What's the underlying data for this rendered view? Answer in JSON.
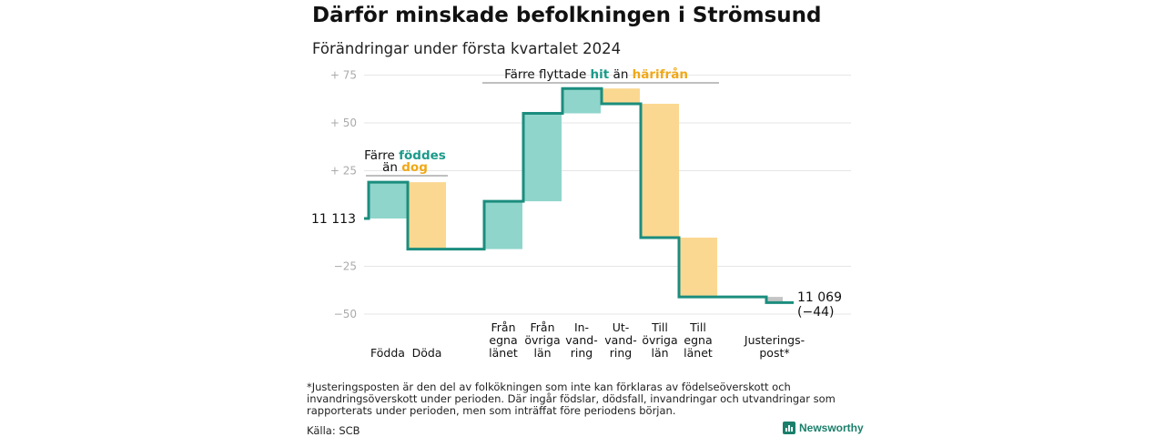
{
  "title": "Därför minskade befolkningen i Strömsund",
  "subtitle": "Förändringar under första kvartalet 2024",
  "footnote": "*Justeringsposten är den del av folkökningen som inte kan förklaras av födelseöverskott och invandringsöverskott under perioden. Där ingår födslar, dödsfall, invandringar och utvandringar som rapporterats under perioden, men som inträffat före periodens början.",
  "source": "Källa: SCB",
  "logo_text": "Newsworthy",
  "colors": {
    "increase": "#8fd5cb",
    "decrease": "#fbd891",
    "adjustment": "#c4c4c4",
    "line": "#1b8d7e",
    "teal_text": "#1b9a8a",
    "orange_text": "#f0a818"
  },
  "chart_data": {
    "type": "waterfall",
    "baseline_value": 11113,
    "start_label": "11  113",
    "end_label_lines": [
      "11 069",
      "(−44)"
    ],
    "ylim": [
      -53,
      80
    ],
    "yticks": [
      {
        "value": 75,
        "label": "+  75"
      },
      {
        "value": 50,
        "label": "+  50"
      },
      {
        "value": 25,
        "label": "+  25"
      },
      {
        "value": -25,
        "label": "−25"
      },
      {
        "value": -50,
        "label": "−50"
      }
    ],
    "categories": [
      {
        "label_lines": [
          "Födda"
        ],
        "start": 0,
        "end": 19,
        "kind": "increase"
      },
      {
        "label_lines": [
          "Döda"
        ],
        "start": 19,
        "end": -16,
        "kind": "decrease"
      },
      {
        "label_lines": [
          "Från",
          "egna",
          "länet"
        ],
        "start": -16,
        "end": 9,
        "kind": "increase"
      },
      {
        "label_lines": [
          "Från",
          "övriga",
          "län"
        ],
        "start": 9,
        "end": 55,
        "kind": "increase"
      },
      {
        "label_lines": [
          "In-",
          "vand-",
          "ring"
        ],
        "start": 55,
        "end": 68,
        "kind": "increase"
      },
      {
        "label_lines": [
          "Ut-",
          "vand-",
          "ring"
        ],
        "start": 68,
        "end": 60,
        "kind": "decrease"
      },
      {
        "label_lines": [
          "Till",
          "övriga",
          "län"
        ],
        "start": 60,
        "end": -10,
        "kind": "decrease"
      },
      {
        "label_lines": [
          "Till",
          "egna",
          "länet"
        ],
        "start": -10,
        "end": -41,
        "kind": "decrease"
      },
      {
        "label_lines": [
          "Justerings-",
          "post*"
        ],
        "start": -41,
        "end": -44,
        "kind": "adjustment"
      }
    ],
    "annotations": [
      {
        "parts": [
          {
            "text": "Färre ",
            "color": "normal"
          },
          {
            "text": "föddes",
            "color": "teal"
          }
        ],
        "parts2": [
          {
            "text": "än ",
            "color": "normal"
          },
          {
            "text": "dog",
            "color": "orange"
          }
        ]
      },
      {
        "parts": [
          {
            "text": "Färre flyttade ",
            "color": "normal"
          },
          {
            "text": "hit",
            "color": "teal"
          },
          {
            "text": "  än ",
            "color": "normal"
          },
          {
            "text": "härifrån",
            "color": "orange"
          }
        ]
      }
    ]
  }
}
